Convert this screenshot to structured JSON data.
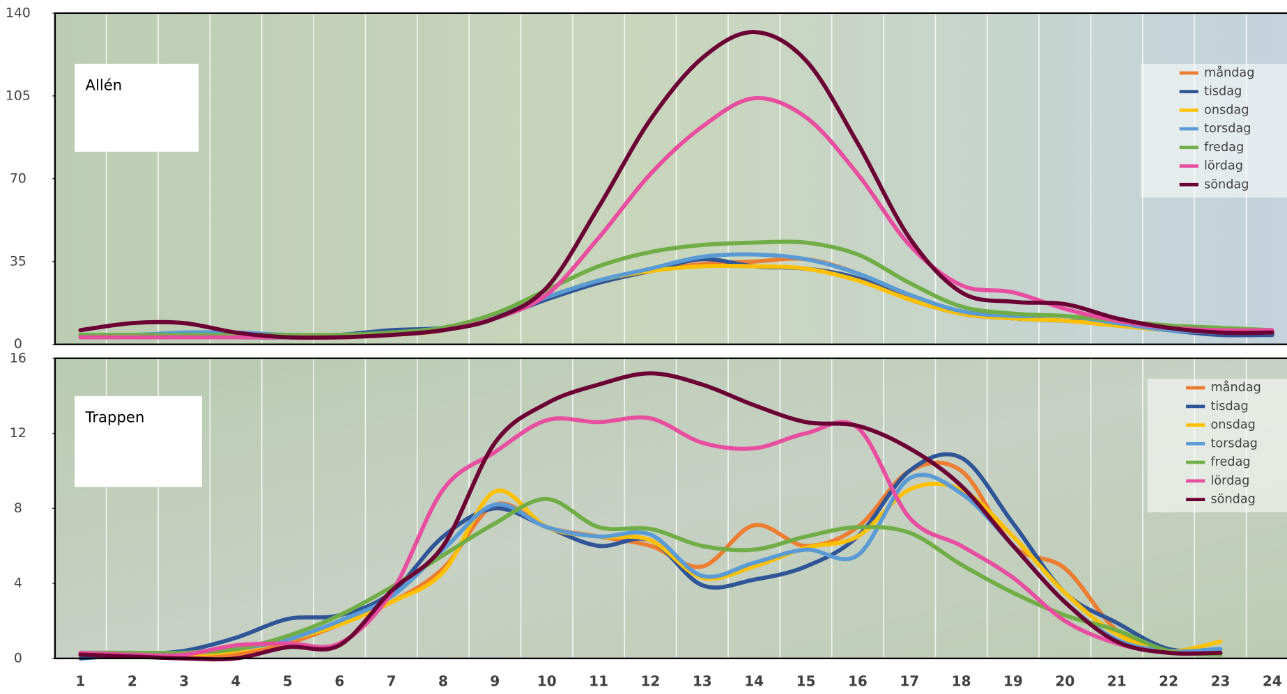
{
  "chart_data": [
    {
      "type": "line",
      "label": "Allén",
      "x": [
        1,
        2,
        3,
        4,
        5,
        6,
        7,
        8,
        9,
        10,
        11,
        12,
        13,
        14,
        15,
        16,
        17,
        18,
        19,
        20,
        21,
        22,
        23,
        24
      ],
      "ylim": [
        0,
        140
      ],
      "yticks": [
        0,
        35,
        70,
        105,
        140
      ],
      "legend": "upper right",
      "series": [
        {
          "name": "måndag",
          "color": "#ed7d31",
          "values": [
            3,
            3,
            3,
            3,
            3,
            3,
            4,
            6,
            12,
            20,
            26,
            31,
            34,
            35,
            36,
            30,
            20,
            13,
            11,
            10,
            8,
            6,
            5,
            4
          ]
        },
        {
          "name": "tisdag",
          "color": "#2f5597",
          "values": [
            3,
            3,
            3,
            3,
            3,
            4,
            6,
            7,
            11,
            19,
            26,
            31,
            36,
            33,
            32,
            28,
            19,
            13,
            11,
            10,
            9,
            6,
            4,
            4
          ]
        },
        {
          "name": "onsdag",
          "color": "#ffc000",
          "values": [
            3,
            3,
            3,
            3,
            3,
            3,
            4,
            6,
            12,
            20,
            27,
            31,
            33,
            33,
            32,
            27,
            19,
            13,
            11,
            10,
            8,
            6,
            5,
            5
          ]
        },
        {
          "name": "torsdag",
          "color": "#5b9bd5",
          "values": [
            4,
            4,
            5,
            5,
            4,
            4,
            5,
            7,
            12,
            20,
            27,
            32,
            37,
            38,
            36,
            30,
            21,
            14,
            12,
            12,
            9,
            6,
            5,
            5
          ]
        },
        {
          "name": "fredag",
          "color": "#70ad47",
          "values": [
            4,
            4,
            4,
            4,
            4,
            4,
            5,
            7,
            13,
            23,
            33,
            39,
            42,
            43,
            43,
            38,
            26,
            16,
            13,
            12,
            10,
            8,
            7,
            6
          ]
        },
        {
          "name": "lördag",
          "color": "#e84ea0",
          "values": [
            3,
            3,
            3,
            3,
            3,
            3,
            4,
            6,
            11,
            21,
            45,
            72,
            92,
            104,
            96,
            72,
            42,
            25,
            22,
            15,
            10,
            7,
            6,
            6
          ]
        },
        {
          "name": "söndag",
          "color": "#6b0034",
          "values": [
            6,
            9,
            9,
            5,
            3,
            3,
            4,
            6,
            11,
            24,
            58,
            95,
            121,
            132,
            120,
            85,
            45,
            22,
            18,
            17,
            11,
            7,
            5,
            5
          ]
        }
      ]
    },
    {
      "type": "line",
      "label": "Trappen",
      "x": [
        1,
        2,
        3,
        4,
        5,
        6,
        7,
        8,
        9,
        10,
        11,
        12,
        13,
        14,
        15,
        16,
        17,
        18,
        19,
        20,
        21,
        22,
        23,
        24
      ],
      "ylim": [
        0,
        16
      ],
      "yticks": [
        0,
        4,
        8,
        12,
        16
      ],
      "legend": "upper right",
      "series": [
        {
          "name": "måndag",
          "color": "#ed7d31",
          "values": [
            0.3,
            0.2,
            0.1,
            0.2,
            0.8,
            1.8,
            3,
            4.8,
            8.2,
            7,
            6.5,
            6,
            4.9,
            7.1,
            6,
            7,
            10,
            10,
            6,
            4.8,
            1.5,
            0.5,
            0.2,
            null
          ]
        },
        {
          "name": "tisdag",
          "color": "#2f5597",
          "values": [
            0,
            0.2,
            0.4,
            1.1,
            2.1,
            2.3,
            3.5,
            6.5,
            8,
            7,
            6,
            6.3,
            3.9,
            4.2,
            4.9,
            6.5,
            10,
            10.7,
            7.2,
            3.5,
            1.9,
            0.5,
            0.5,
            null
          ]
        },
        {
          "name": "onsdag",
          "color": "#ffc000",
          "values": [
            0.2,
            0.2,
            0.2,
            0.4,
            1,
            1.8,
            3,
            4.6,
            8.9,
            7,
            6.5,
            6.3,
            4.3,
            4.9,
            5.9,
            6.5,
            9,
            9,
            6.5,
            3.5,
            1.3,
            0.4,
            0.9,
            null
          ]
        },
        {
          "name": "torsdag",
          "color": "#5b9bd5",
          "values": [
            0.3,
            0.3,
            0.3,
            0.5,
            1,
            2,
            3.3,
            5.8,
            8.2,
            7,
            6.5,
            6.6,
            4.4,
            5.1,
            5.8,
            5.5,
            9.6,
            8.8,
            6,
            3,
            1,
            0.4,
            0.5,
            null
          ]
        },
        {
          "name": "fredag",
          "color": "#70ad47",
          "values": [
            0.3,
            0.3,
            0.3,
            0.5,
            1.2,
            2.3,
            3.8,
            5.5,
            7.2,
            8.5,
            7,
            6.9,
            6,
            5.8,
            6.5,
            7,
            6.7,
            5,
            3.5,
            2.3,
            1.5,
            0.4,
            0.2,
            null
          ]
        },
        {
          "name": "lördag",
          "color": "#e84ea0",
          "values": [
            0.3,
            0.2,
            0.2,
            0.7,
            0.8,
            0.8,
            3.5,
            9,
            11,
            12.7,
            12.6,
            12.8,
            11.5,
            11.2,
            12,
            12.3,
            7.5,
            6,
            4.3,
            2,
            0.8,
            0.3,
            0.3,
            null
          ]
        },
        {
          "name": "söndag",
          "color": "#6b0034",
          "values": [
            0.2,
            0.1,
            0,
            0,
            0.6,
            0.7,
            3.6,
            6,
            11.5,
            13.6,
            14.6,
            15.2,
            14.6,
            13.5,
            12.6,
            12.4,
            11.2,
            9.2,
            6,
            3,
            0.9,
            0.3,
            0.3,
            null
          ]
        }
      ]
    }
  ]
}
